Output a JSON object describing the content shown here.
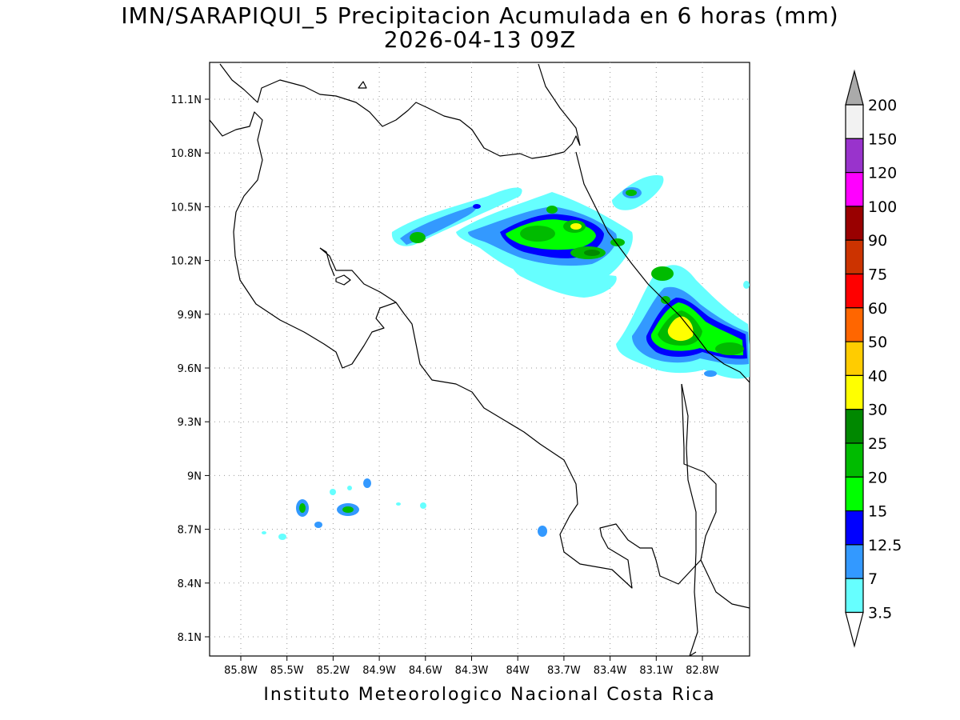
{
  "header": {
    "title": "IMN/SARAPIQUI_5 Precipitacion Acumulada en 6 horas (mm)",
    "subtitle": "2026-04-13 09Z"
  },
  "footer": {
    "credit": "Instituto Meteorologico Nacional Costa Rica"
  },
  "map": {
    "lat_range": [
      8.0,
      11.3
    ],
    "lon_range": [
      -86.0,
      -83.0
    ],
    "lat_ticks": [
      "11.1N",
      "10.8N",
      "10.5N",
      "10.2N",
      "9.9N",
      "9.6N",
      "9.3N",
      "9N",
      "8.7N",
      "8.4N",
      "8.1N"
    ],
    "lon_ticks": [
      "85.8W",
      "85.5W",
      "85.2W",
      "84.9W",
      "84.6W",
      "84.3W",
      "84W",
      "83.7W",
      "83.4W",
      "83.1W",
      "82.8W"
    ],
    "grid": true
  },
  "colorbar": {
    "labels": [
      "200",
      "150",
      "120",
      "100",
      "90",
      "75",
      "60",
      "50",
      "40",
      "30",
      "25",
      "20",
      "15",
      "12.5",
      "7",
      "3.5"
    ],
    "colors": [
      "#f2f2f2",
      "#9933cc",
      "#ff00ff",
      "#990000",
      "#cc3300",
      "#ff0000",
      "#ff6600",
      "#ffcc00",
      "#ffff00",
      "#008800",
      "#00bb00",
      "#00ff00",
      "#0000ff",
      "#3399ff",
      "#66ffff"
    ],
    "top_cap_color": "#aaaaaa",
    "bottom_cap_color": "#ffffff"
  }
}
